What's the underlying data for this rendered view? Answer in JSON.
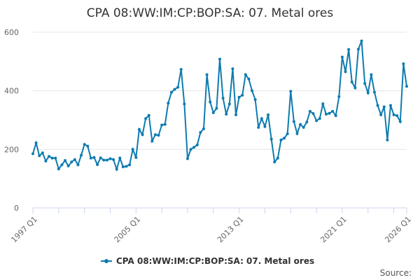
{
  "chart_data": {
    "type": "line",
    "title": "CPA 08:WW:IM:CP:BOP:SA: 07. Metal ores",
    "source": "Source:",
    "categories": [
      "1997 Q1",
      null,
      null,
      null,
      null,
      null,
      null,
      null,
      null,
      null,
      null,
      null,
      null,
      null,
      null,
      null,
      null,
      null,
      null,
      null,
      null,
      null,
      null,
      null,
      null,
      null,
      null,
      null,
      null,
      null,
      null,
      null,
      "2005 Q1",
      null,
      null,
      null,
      null,
      null,
      null,
      null,
      null,
      null,
      null,
      null,
      null,
      null,
      null,
      null,
      null,
      null,
      null,
      null,
      null,
      null,
      null,
      null,
      null,
      null,
      null,
      null,
      null,
      null,
      null,
      null,
      "2013 Q1",
      null,
      null,
      null,
      null,
      null,
      null,
      null,
      null,
      null,
      null,
      null,
      null,
      null,
      null,
      null,
      null,
      null,
      null,
      null,
      null,
      null,
      null,
      null,
      null,
      null,
      null,
      null,
      null,
      null,
      null,
      null,
      "2021 Q1",
      null,
      null,
      null,
      null,
      null,
      null,
      null,
      null,
      null,
      null,
      null,
      null,
      null,
      null,
      null,
      null,
      null,
      null,
      null,
      "2026 Q1"
    ],
    "series": [
      {
        "name": "CPA 08:WW:IM:CP:BOP:SA: 07. Metal ores",
        "color": "#0e7bb0",
        "values": [
          185,
          222,
          178,
          188,
          160,
          176,
          170,
          170,
          133,
          147,
          162,
          143,
          157,
          165,
          147,
          180,
          217,
          211,
          170,
          172,
          148,
          171,
          163,
          163,
          168,
          165,
          132,
          170,
          140,
          142,
          147,
          200,
          172,
          268,
          250,
          305,
          316,
          228,
          250,
          248,
          283,
          285,
          358,
          395,
          405,
          412,
          473,
          355,
          168,
          200,
          207,
          215,
          258,
          270,
          455,
          362,
          325,
          340,
          508,
          375,
          320,
          355,
          475,
          318,
          378,
          385,
          455,
          440,
          400,
          370,
          275,
          305,
          278,
          318,
          235,
          157,
          170,
          232,
          238,
          253,
          398,
          295,
          254,
          285,
          275,
          293,
          330,
          322,
          298,
          305,
          355,
          320,
          323,
          330,
          315,
          380,
          515,
          465,
          541,
          430,
          410,
          542,
          570,
          425,
          393,
          455,
          395,
          350,
          318,
          345,
          232,
          350,
          318,
          315,
          295,
          492,
          415
        ]
      }
    ],
    "ylim": [
      0,
      600
    ],
    "yticks": [
      0,
      200,
      400,
      600
    ],
    "grid": true
  }
}
